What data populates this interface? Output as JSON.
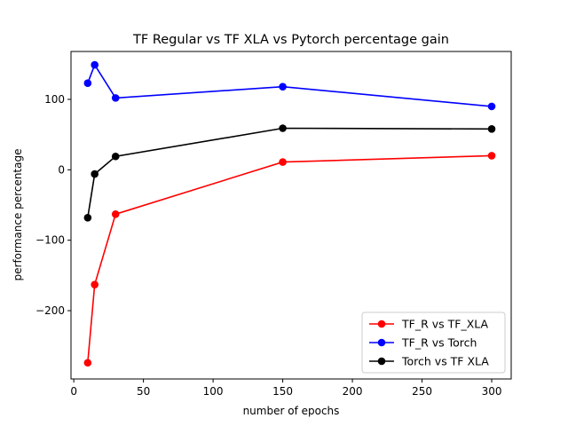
{
  "chart_data": {
    "type": "line",
    "title": "TF Regular vs TF XLA vs Pytorch percentage gain",
    "xlabel": "number of epochs",
    "ylabel": "performance percentage",
    "xlim": [
      -2,
      314
    ],
    "ylim": [
      -297,
      168
    ],
    "xticks": [
      0,
      50,
      100,
      150,
      200,
      250,
      300
    ],
    "yticks": [
      -200,
      -100,
      0,
      100
    ],
    "ytick_labels": [
      "−200",
      "−100",
      "0",
      "100"
    ],
    "grid": false,
    "legend_position": "lower-right",
    "series": [
      {
        "name": "TF_R vs TF_XLA",
        "color": "#ff0000",
        "x": [
          10,
          15,
          30,
          150,
          300
        ],
        "y": [
          -274,
          -163,
          -63,
          11,
          20
        ]
      },
      {
        "name": "TF_R vs Torch",
        "color": "#0000ff",
        "x": [
          10,
          15,
          30,
          150,
          300
        ],
        "y": [
          123,
          149,
          102,
          118,
          90
        ]
      },
      {
        "name": "Torch vs TF XLA",
        "color": "#000000",
        "x": [
          10,
          15,
          30,
          150,
          300
        ],
        "y": [
          -68,
          -6,
          19,
          59,
          58
        ]
      }
    ]
  }
}
